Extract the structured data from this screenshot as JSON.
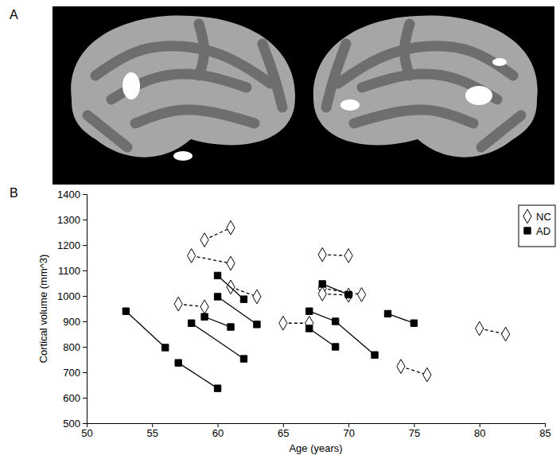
{
  "panel_labels": [
    "A",
    "B"
  ],
  "chart_data": {
    "type": "scatter",
    "xlabel": "Age (years)",
    "ylabel": "Cortical volume (mm^3)",
    "xlim": [
      50,
      85
    ],
    "xticks": [
      50,
      55,
      60,
      65,
      70,
      75,
      80,
      85
    ],
    "ylim": [
      500,
      1400
    ],
    "yticks": [
      500,
      600,
      700,
      800,
      900,
      1000,
      1100,
      1200,
      1300,
      1400
    ],
    "grid": false,
    "legend": "upper right",
    "series": [
      {
        "name": "NC",
        "color": "#000000",
        "marker": "diamond",
        "line_style": "dashed",
        "x": [
          59,
          61,
          null,
          58,
          61,
          null,
          61,
          63,
          null,
          57,
          59,
          null,
          65,
          67,
          null,
          68,
          70,
          null,
          68,
          71,
          null,
          68,
          70,
          null,
          74,
          76,
          null,
          80,
          82
        ],
        "values": [
          1220,
          1268,
          null,
          1158,
          1128,
          null,
          1035,
          997,
          null,
          968,
          957,
          null,
          893,
          893,
          null,
          1162,
          1158,
          null,
          1030,
          1005,
          null,
          1008,
          1003,
          null,
          723,
          690,
          null,
          872,
          850
        ]
      },
      {
        "name": "AD",
        "color": "#000000",
        "marker": "square",
        "line_style": "solid",
        "x": [
          53,
          56,
          null,
          57,
          60,
          null,
          58,
          62,
          null,
          59,
          61,
          null,
          60,
          62,
          null,
          60,
          63,
          null,
          67,
          69,
          72,
          null,
          67,
          69,
          null,
          68,
          70,
          null,
          73,
          75
        ],
        "values": [
          940,
          797,
          null,
          737,
          637,
          null,
          893,
          753,
          null,
          918,
          878,
          null,
          1080,
          987,
          null,
          997,
          888,
          null,
          940,
          900,
          768,
          null,
          872,
          800,
          null,
          1047,
          1005,
          null,
          930,
          893
        ]
      }
    ]
  }
}
